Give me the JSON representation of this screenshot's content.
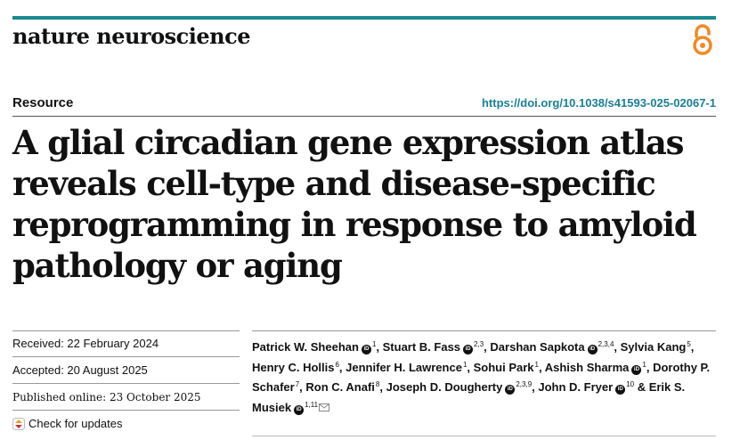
{
  "header": {
    "journal_name": "nature neuroscience",
    "section_label": "Resource",
    "doi": "https://doi.org/10.1038/s41593-025-02067-1",
    "accent_color": "#1a8a8e",
    "open_access_icon": "open-access-icon"
  },
  "article": {
    "title_lines": [
      "A glial circadian gene expression atlas",
      "reveals cell-type and disease-specific",
      "reprogramming in response to amyloid",
      "pathology or aging"
    ]
  },
  "dates": {
    "received": "Received: 22 February 2024",
    "accepted": "Accepted: 20 August 2025",
    "published": "Published online: 23 October 2025",
    "check_updates": "Check for updates"
  },
  "authors": [
    {
      "name": "Patrick W. Sheehan",
      "orcid": true,
      "aff": "1"
    },
    {
      "name": "Stuart B. Fass",
      "orcid": true,
      "aff": "2,3"
    },
    {
      "name": "Darshan Sapkota",
      "orcid": true,
      "aff": "2,3,4"
    },
    {
      "name": "Sylvia Kang",
      "orcid": false,
      "aff": "5"
    },
    {
      "name": "Henry C. Hollis",
      "orcid": false,
      "aff": "6"
    },
    {
      "name": "Jennifer H. Lawrence",
      "orcid": false,
      "aff": "1"
    },
    {
      "name": "Sohui Park",
      "orcid": false,
      "aff": "1"
    },
    {
      "name": "Ashish Sharma",
      "orcid": true,
      "aff": "1"
    },
    {
      "name": "Dorothy P. Schafer",
      "orcid": false,
      "aff": "7"
    },
    {
      "name": "Ron C. Anafi",
      "orcid": false,
      "aff": "8"
    },
    {
      "name": "Joseph D. Dougherty",
      "orcid": true,
      "aff": "2,3,9"
    },
    {
      "name": "John D. Fryer",
      "orcid": true,
      "aff": "10"
    },
    {
      "name": "Erik S. Musiek",
      "orcid": true,
      "aff": "1,11",
      "email": true
    }
  ],
  "author_separator": ", ",
  "author_last_joiner": "& "
}
